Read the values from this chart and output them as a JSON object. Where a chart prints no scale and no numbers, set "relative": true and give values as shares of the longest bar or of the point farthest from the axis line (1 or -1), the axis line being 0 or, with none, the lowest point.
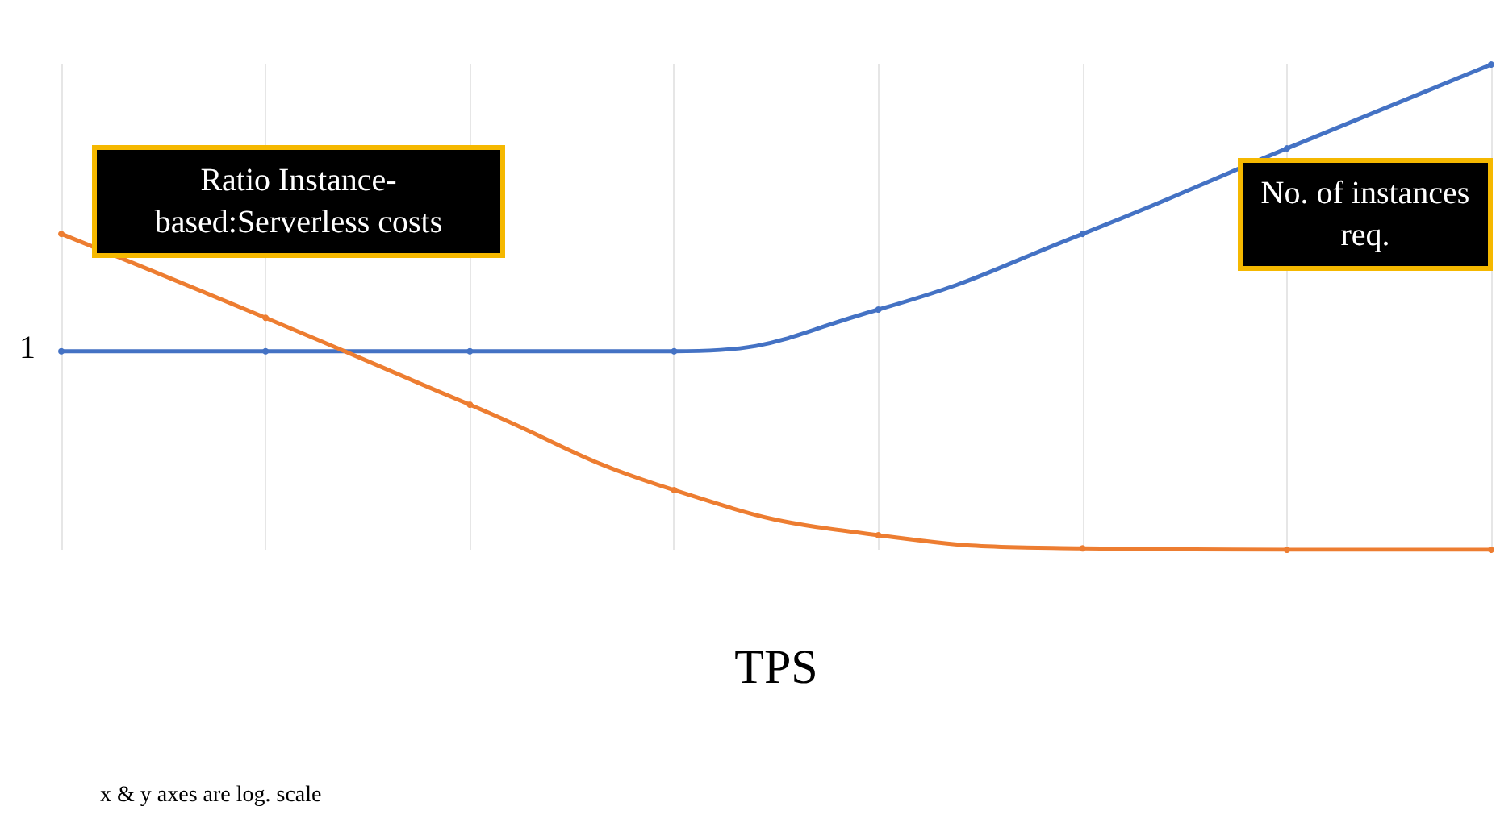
{
  "chart_data": {
    "type": "line",
    "relative": true,
    "xlabel": "TPS",
    "categories": [
      null,
      null,
      null,
      null,
      null,
      null,
      null,
      null
    ],
    "series": [
      {
        "name": "No. of instances req.",
        "color": "#4472c4",
        "values": [
          0.409,
          0.409,
          0.409,
          0.409,
          0.495,
          0.651,
          0.827,
          1
        ]
      },
      {
        "name": "Ratio Instance-based:Serverless costs",
        "color": "#ed7d31",
        "values": [
          0.651,
          0.478,
          0.299,
          0.123,
          0.03,
          0.003,
          0,
          0
        ]
      }
    ],
    "annotations": [
      "1",
      "x & y axes are log. scale"
    ],
    "grid": "x",
    "marker": "circle",
    "line_style": "solid",
    "legend": false
  }
}
